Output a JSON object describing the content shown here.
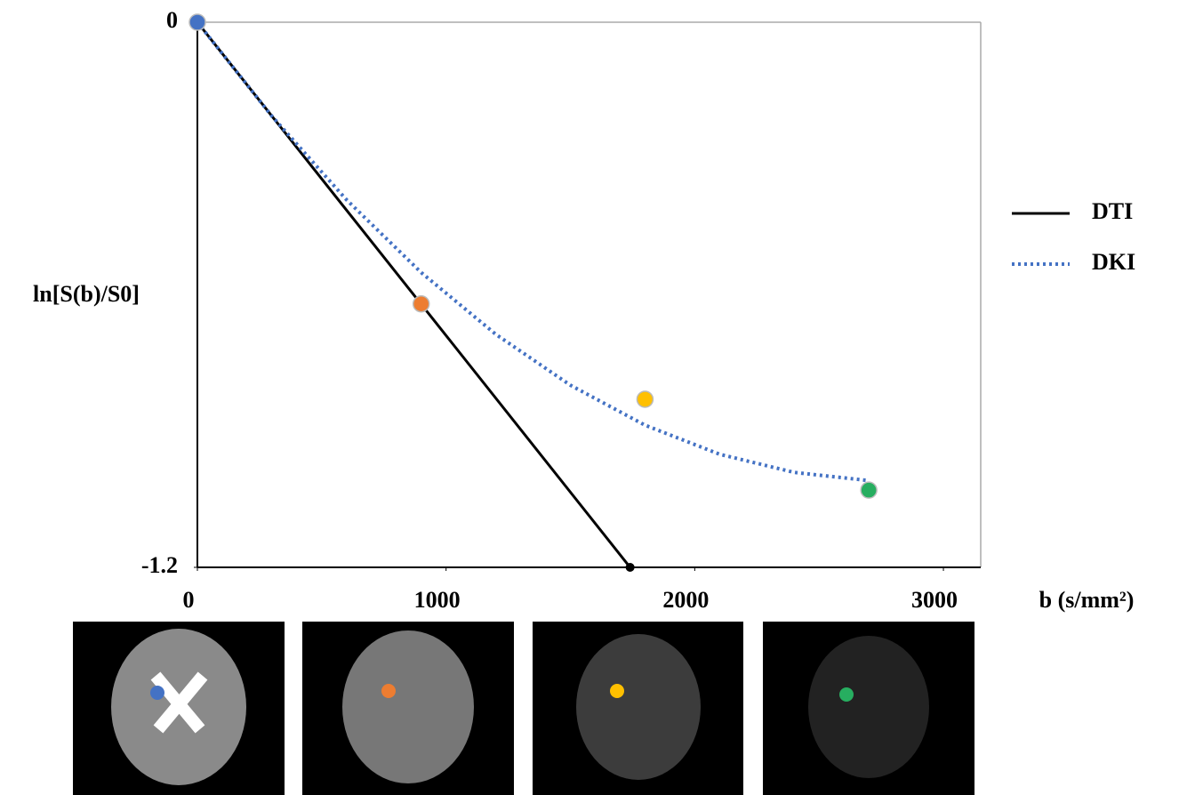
{
  "chart_data": {
    "type": "line",
    "x_label": "b (s/mm²)",
    "y_label": "ln[S(b)/S0]",
    "xlim": [
      0,
      3150
    ],
    "ylim": [
      -1.2,
      0
    ],
    "xticks": [
      0,
      1000,
      2000,
      3000
    ],
    "yticks": [
      0,
      -1.2
    ],
    "legend": "right",
    "series": [
      {
        "name": "DTI",
        "color": "#000000",
        "style": "solid",
        "x": [
          0,
          1740
        ],
        "values": [
          0,
          -1.2
        ]
      },
      {
        "name": "DKI",
        "color": "#4472c4",
        "style": "dotted",
        "x": [
          0,
          300,
          600,
          900,
          1200,
          1500,
          1800,
          2100,
          2400,
          2700
        ],
        "values": [
          0,
          -0.207,
          -0.391,
          -0.551,
          -0.687,
          -0.799,
          -0.887,
          -0.951,
          -0.991,
          -1.009
        ]
      }
    ],
    "points": {
      "x": [
        0,
        900,
        1800,
        2700
      ],
      "values": [
        0,
        -0.62,
        -0.83,
        -1.03
      ],
      "colors": [
        "#4472c4",
        "#ed7d31",
        "#ffc000",
        "#27ae60"
      ]
    }
  }
}
